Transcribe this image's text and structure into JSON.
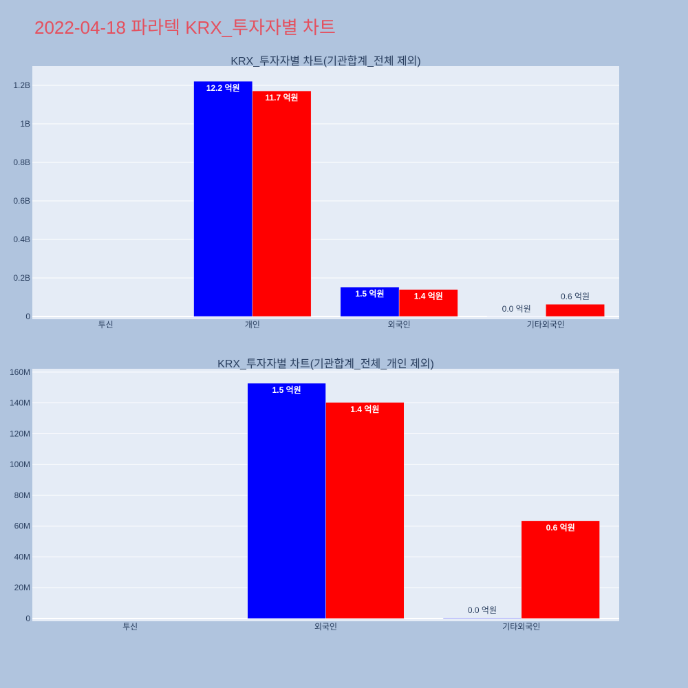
{
  "header": {
    "title": "2022-04-18 파라텍 KRX_투자자별 차트"
  },
  "colors": {
    "page_background": "#b0c4de",
    "plot_background": "#e5ecf6",
    "gridline": "#ffffff",
    "header_title": "#e4505e",
    "axis_text": "#2a3f5f",
    "inside_label": "#ffffff",
    "outside_label": "#2a3f5f"
  },
  "chart_data": [
    {
      "type": "bar",
      "barmode": "group",
      "title": "KRX_투자자별 차트(기관합계_전체 제외)",
      "categories": [
        "투신",
        "개인",
        "외국인",
        "기타외국인"
      ],
      "series": [
        {
          "color": "#0000ff",
          "values": [
            null,
            1221000000,
            152800000,
            400000
          ],
          "text": [
            null,
            "12.2 억원",
            "1.5 억원",
            "0.0 억원"
          ]
        },
        {
          "color": "#ff0000",
          "values": [
            null,
            1171000000,
            140300000,
            63500000
          ],
          "text": [
            null,
            "11.7 억원",
            "1.4 억원",
            "0.6 억원"
          ]
        }
      ],
      "ylim": [
        -14300000,
        1300000000
      ],
      "yticks": {
        "values": [
          0,
          200000000,
          400000000,
          600000000,
          800000000,
          1000000000,
          1200000000
        ],
        "labels": [
          "0",
          "0.2B",
          "0.4B",
          "0.6B",
          "0.8B",
          "1B",
          "1.2B"
        ]
      },
      "grid": true,
      "legend": "none"
    },
    {
      "type": "bar",
      "barmode": "group",
      "title": "KRX_투자자별 차트(기관합계_전체_개인 제외)",
      "categories": [
        "투신",
        "외국인",
        "기타외국인"
      ],
      "series": [
        {
          "color": "#0000ff",
          "values": [
            null,
            152800000,
            400000
          ],
          "text": [
            null,
            "1.5 억원",
            "0.0 억원"
          ]
        },
        {
          "color": "#ff0000",
          "values": [
            null,
            140300000,
            63500000
          ],
          "text": [
            null,
            "1.4 억원",
            "0.6 억원"
          ]
        }
      ],
      "ylim": [
        -1800000,
        162200000
      ],
      "yticks": {
        "values": [
          0,
          20000000,
          40000000,
          60000000,
          80000000,
          100000000,
          120000000,
          140000000,
          160000000
        ],
        "labels": [
          "0",
          "20M",
          "40M",
          "60M",
          "80M",
          "100M",
          "120M",
          "140M",
          "160M"
        ]
      },
      "grid": true,
      "legend": "none"
    }
  ]
}
